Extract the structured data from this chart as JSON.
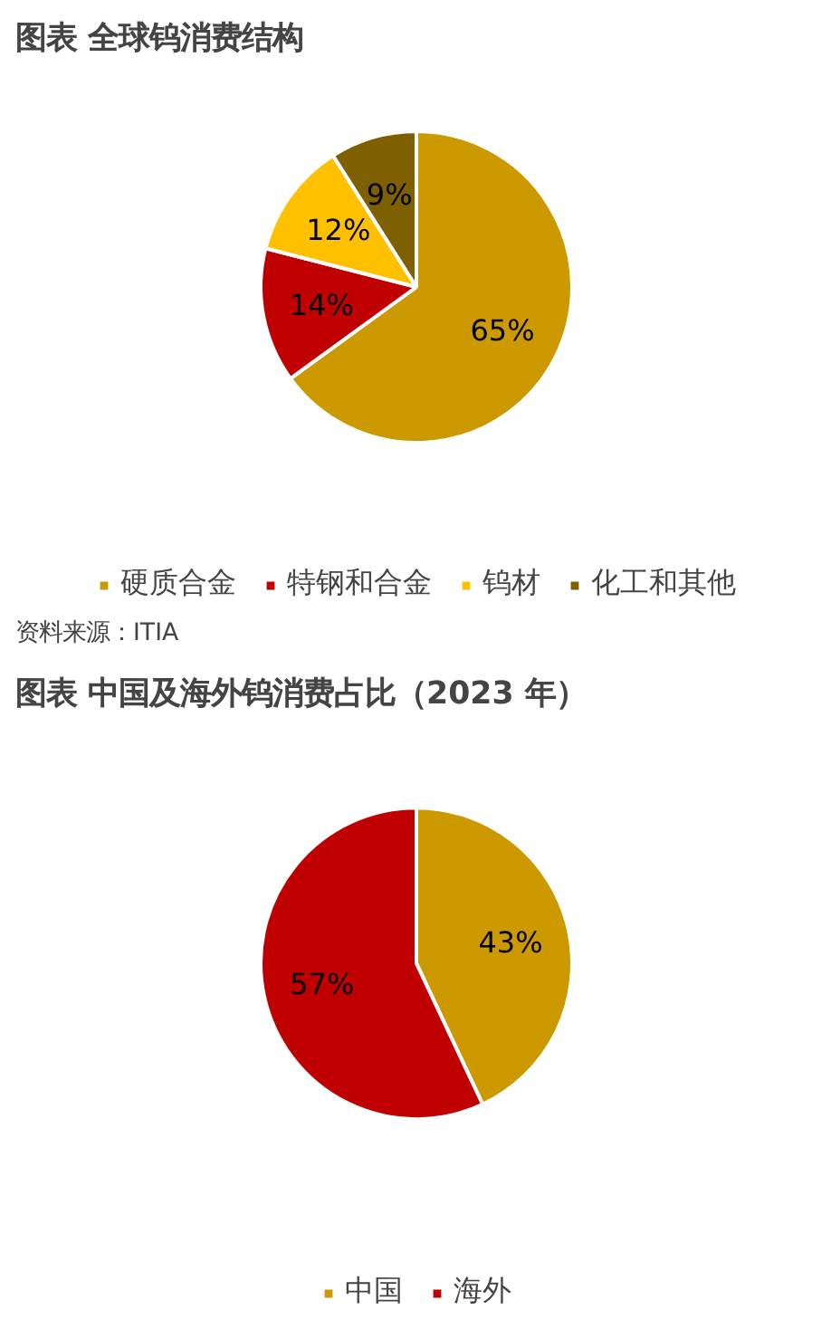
{
  "chart_data": [
    {
      "type": "pie",
      "title": "图表  全球钨消费结构",
      "categories": [
        "硬质合金",
        "特钢和合金",
        "钨材",
        "化工和其他"
      ],
      "values": [
        65,
        14,
        12,
        9
      ],
      "colors": [
        "#cc9900",
        "#c00000",
        "#ffc000",
        "#7f6000"
      ],
      "value_labels": [
        "65%",
        "14%",
        "12%",
        "9%"
      ],
      "legend": "bottom",
      "annotations": [
        "资料来源：ITIA"
      ]
    },
    {
      "type": "pie",
      "title": "图表  中国及海外钨消费占比（2023 年）",
      "categories": [
        "中国",
        "海外"
      ],
      "values": [
        43,
        57
      ],
      "colors": [
        "#cc9900",
        "#c00000"
      ],
      "value_labels": [
        "43%",
        "57%"
      ],
      "legend": "bottom"
    }
  ]
}
